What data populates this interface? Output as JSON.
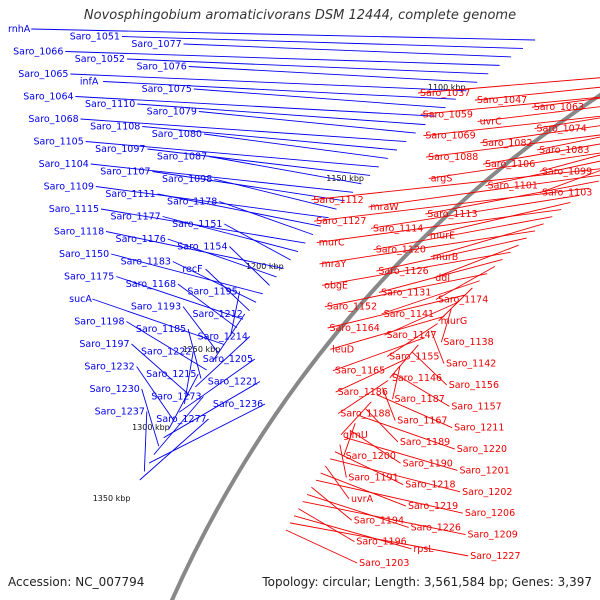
{
  "title": "Novosphingobium aromaticivorans DSM 12444, complete genome",
  "footer": {
    "accession": "Accession: NC_007794",
    "summary": "Topology: circular; Length: 3,561,584 bp; Genes: 3,397"
  },
  "colors": {
    "strand_forward": "#0000ee",
    "strand_reverse": "#ee0000",
    "backbone": "#888888",
    "tick": "#2a8f2a"
  },
  "scale_ticks": [
    "1100 kbp",
    "1150 kbp",
    "1200 kbp",
    "1250 kbp",
    "1300 kbp",
    "1350 kbp"
  ],
  "forward_labels": [
    "rnhA",
    "Saro_1051",
    "Saro_1077",
    "Saro_1066",
    "Saro_1052",
    "Saro_1076",
    "Saro_1065",
    "infA",
    "Saro_1075",
    "Saro_1064",
    "Saro_1110",
    "Saro_1079",
    "Saro_1068",
    "Saro_1108",
    "Saro_1080",
    "Saro_1105",
    "Saro_1097",
    "Saro_1087",
    "Saro_1104",
    "Saro_1107",
    "Saro_1098",
    "Saro_1109",
    "Saro_1111",
    "Saro_1178",
    "Saro_1115",
    "Saro_1177",
    "Saro_1151",
    "Saro_1118",
    "Saro_1176",
    "Saro_1154",
    "Saro_1150",
    "Saro_1183",
    "recF",
    "Saro_1175",
    "Saro_1168",
    "Saro_1195",
    "sucA",
    "Saro_1193",
    "Saro_1212",
    "Saro_1198",
    "Saro_1185",
    "Saro_1214",
    "Saro_1197",
    "Saro_1222",
    "Saro_1205",
    "Saro_1232",
    "Saro_1215",
    "Saro_1221",
    "Saro_1230",
    "Saro_1273",
    "Saro_1236",
    "Saro_1237",
    "Saro_1277"
  ],
  "reverse_labels": [
    "Saro_1037",
    "Saro_1047",
    "Saro_1063",
    "Saro_1059",
    "uvrC",
    "Saro_1074",
    "Saro_1069",
    "Saro_1082",
    "Saro_1083",
    "Saro_1088",
    "Saro_1106",
    "Saro_1099",
    "argS",
    "Saro_1101",
    "Saro_1103",
    "Saro_1112",
    "mraW",
    "Saro_1113",
    "Saro_1127",
    "Saro_1114",
    "murE",
    "murC",
    "Saro_1120",
    "murB",
    "mraY",
    "Saro_1126",
    "ddl",
    "obgE",
    "Saro_1131",
    "Saro_1174",
    "Saro_1152",
    "Saro_1141",
    "murG",
    "Saro_1164",
    "Saro_1147",
    "Saro_1138",
    "leuD",
    "Saro_1155",
    "Saro_1142",
    "Saro_1165",
    "Saro_1146",
    "Saro_1156",
    "Saro_1186",
    "Saro_1187",
    "Saro_1157",
    "Saro_1188",
    "Saro_1167",
    "Saro_1211",
    "glmU",
    "Saro_1189",
    "Saro_1220",
    "Saro_1200",
    "Saro_1190",
    "Saro_1201",
    "Saro_1191",
    "Saro_1218",
    "Saro_1202",
    "uvrA",
    "Saro_1219",
    "Saro_1206",
    "Saro_1194",
    "Saro_1226",
    "Saro_1209",
    "Saro_1196",
    "rpsL",
    "Saro_1227",
    "Saro_1203"
  ]
}
